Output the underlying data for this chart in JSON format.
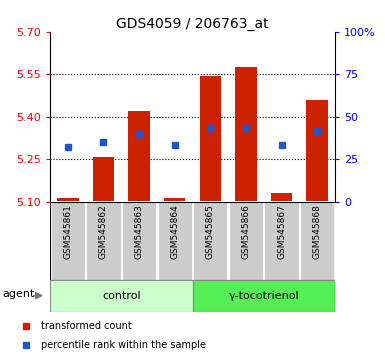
{
  "title": "GDS4059 / 206763_at",
  "samples": [
    "GSM545861",
    "GSM545862",
    "GSM545863",
    "GSM545864",
    "GSM545865",
    "GSM545866",
    "GSM545867",
    "GSM545868"
  ],
  "bar_bottom": [
    5.103,
    5.103,
    5.103,
    5.103,
    5.103,
    5.103,
    5.103,
    5.103
  ],
  "bar_top": [
    5.112,
    5.258,
    5.42,
    5.112,
    5.545,
    5.575,
    5.132,
    5.46
  ],
  "blue_y": [
    5.293,
    5.31,
    5.34,
    5.3,
    5.36,
    5.36,
    5.3,
    5.35
  ],
  "bar_color": "#cc2200",
  "blue_color": "#2255cc",
  "ylim_left": [
    5.1,
    5.7
  ],
  "yticks_left": [
    5.1,
    5.25,
    5.4,
    5.55,
    5.7
  ],
  "ylim_right": [
    0,
    100
  ],
  "yticks_right": [
    0,
    25,
    50,
    75,
    100
  ],
  "ytick_labels_right": [
    "0",
    "25",
    "50",
    "75",
    "100%"
  ],
  "control_label": "control",
  "treatment_label": "γ-tocotrienol",
  "agent_label": "agent",
  "legend_bar_label": "transformed count",
  "legend_blue_label": "percentile rank within the sample",
  "control_bg": "#ccffcc",
  "treatment_bg": "#55ee55",
  "sample_bg": "#cccccc",
  "title_fontsize": 10,
  "tick_fontsize": 8,
  "label_fontsize": 7,
  "bar_width": 0.6
}
